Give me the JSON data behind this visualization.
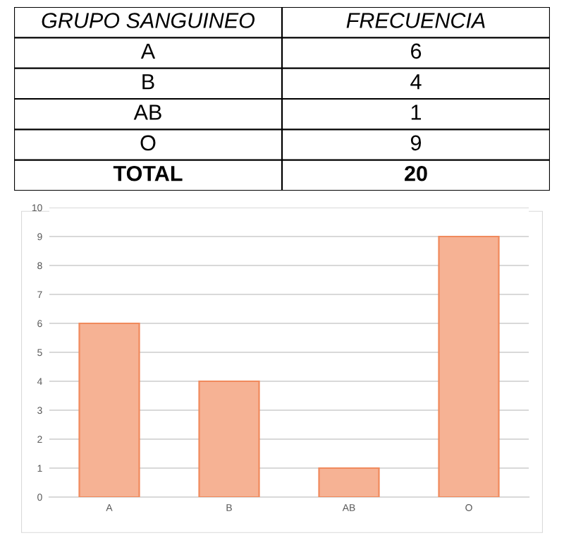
{
  "chart_data": {
    "type": "bar",
    "categories": [
      "A",
      "B",
      "AB",
      "O"
    ],
    "values": [
      6,
      4,
      1,
      9
    ],
    "color": "#f6b294",
    "ylim": [
      0,
      10
    ],
    "yticks": [
      0,
      1,
      2,
      3,
      4,
      5,
      6,
      7,
      8,
      9,
      10
    ],
    "grid": "y",
    "annotations": [
      "GRUPO SANGUINEO",
      "FRECUENCIA",
      "6",
      "4",
      "1",
      "9",
      "TOTAL",
      "20"
    ]
  }
}
